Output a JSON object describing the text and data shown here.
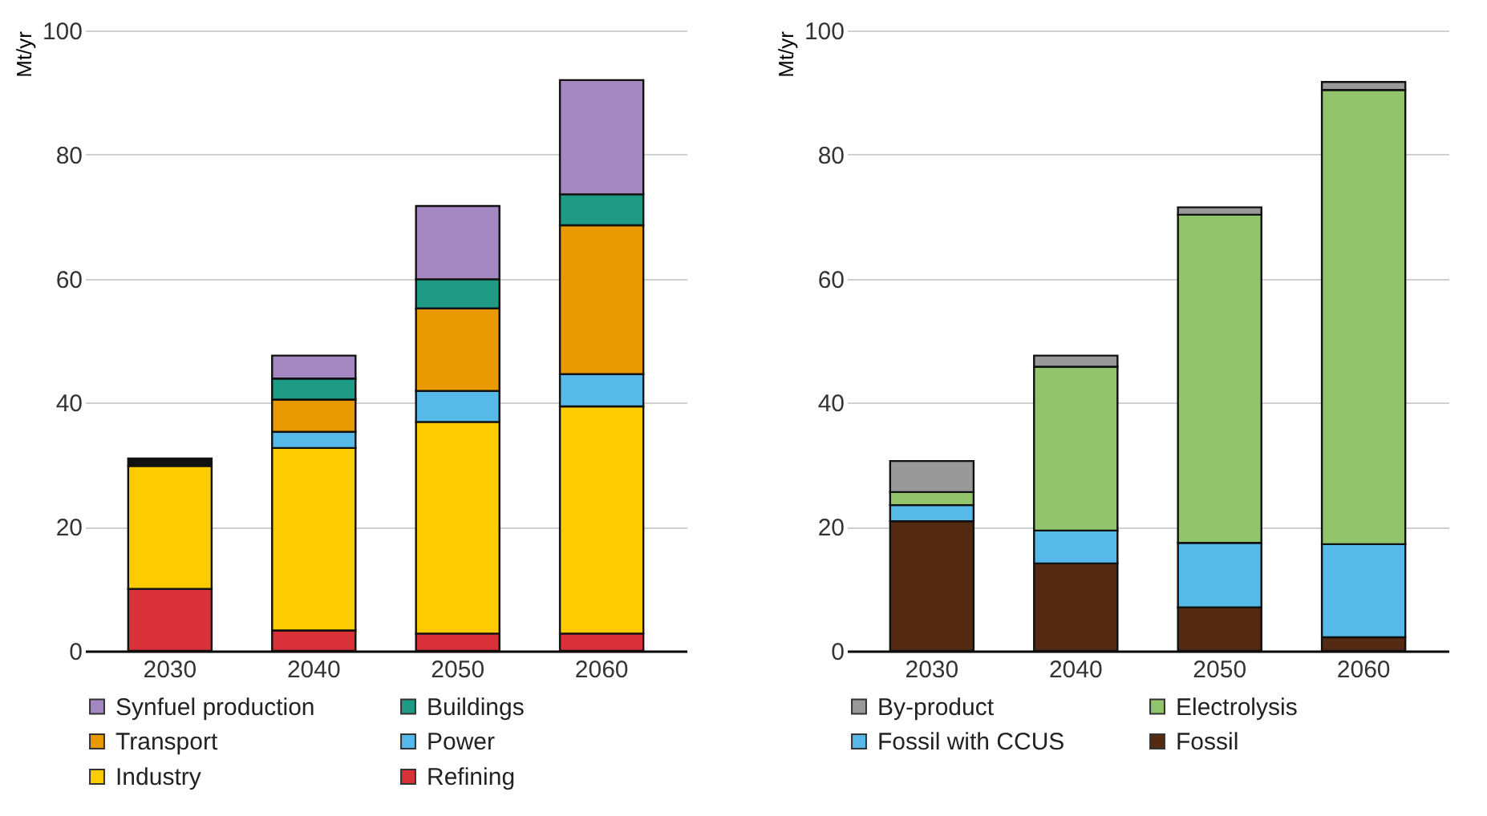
{
  "chart_data": [
    {
      "type": "bar",
      "ylabel": "Mt/yr",
      "categories": [
        "2030",
        "2040",
        "2050",
        "2060"
      ],
      "stacked": true,
      "ylim": [
        0,
        100
      ],
      "yticks": [
        0,
        20,
        40,
        60,
        80,
        100
      ],
      "grid": "y",
      "legend": "bottom",
      "series": [
        {
          "name": "Refining",
          "color": "#d9313a",
          "values": [
            10.0,
            3.3,
            2.8,
            2.8
          ]
        },
        {
          "name": "Industry",
          "color": "#fccb00",
          "values": [
            19.8,
            29.4,
            34.1,
            36.6
          ]
        },
        {
          "name": "Power",
          "color": "#56b9e8",
          "values": [
            null,
            2.6,
            5.0,
            5.2
          ]
        },
        {
          "name": "Transport",
          "color": "#e89a00",
          "values": [
            null,
            5.2,
            13.3,
            24.0
          ]
        },
        {
          "name": "Buildings",
          "color": "#1e9a85",
          "values": [
            null,
            3.4,
            4.7,
            5.0
          ]
        },
        {
          "name": "Synfuel production",
          "color": "#a487c0",
          "values": [
            null,
            3.7,
            11.8,
            18.4
          ]
        },
        {
          "color": "#111111",
          "values": [
            1.2,
            null,
            null,
            null
          ]
        }
      ]
    },
    {
      "type": "bar",
      "ylabel": "Mt/yr",
      "categories": [
        "2030",
        "2040",
        "2050",
        "2060"
      ],
      "stacked": true,
      "ylim": [
        0,
        100
      ],
      "yticks": [
        0,
        20,
        40,
        60,
        80,
        100
      ],
      "grid": "y",
      "legend": "bottom",
      "series": [
        {
          "name": "Fossil",
          "color": "#542a12",
          "values": [
            20.9,
            14.1,
            7.0,
            2.2
          ]
        },
        {
          "name": "Fossil with CCUS",
          "color": "#56b9e8",
          "values": [
            2.6,
            5.3,
            10.4,
            15.0
          ]
        },
        {
          "name": "Electrolysis",
          "color": "#92c46b",
          "values": [
            2.1,
            26.4,
            52.9,
            73.2
          ]
        },
        {
          "name": "By-product",
          "color": "#999999",
          "values": [
            5.0,
            1.8,
            1.2,
            1.3
          ]
        }
      ]
    }
  ]
}
